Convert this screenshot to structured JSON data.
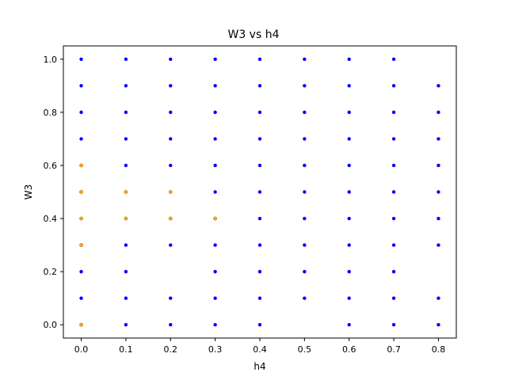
{
  "chart_data": {
    "type": "scatter",
    "title": "W3 vs h4",
    "xlabel": "h4",
    "ylabel": "W3",
    "xlim": [
      -0.04,
      0.84
    ],
    "ylim": [
      -0.05,
      1.05
    ],
    "xticks": [
      "0.0",
      "0.1",
      "0.2",
      "0.3",
      "0.4",
      "0.5",
      "0.6",
      "0.7",
      "0.8"
    ],
    "yticks": [
      "0.0",
      "0.2",
      "0.4",
      "0.6",
      "0.8",
      "1.0"
    ],
    "grid": false,
    "series": [
      {
        "color": "#0000ff",
        "points": [
          [
            0.0,
            1.0
          ],
          [
            0.0,
            0.9
          ],
          [
            0.0,
            0.8
          ],
          [
            0.0,
            0.7
          ],
          [
            0.0,
            0.2
          ],
          [
            0.0,
            0.1
          ],
          [
            0.1,
            1.0
          ],
          [
            0.1,
            0.9
          ],
          [
            0.1,
            0.8
          ],
          [
            0.1,
            0.7
          ],
          [
            0.1,
            0.6
          ],
          [
            0.1,
            0.3
          ],
          [
            0.1,
            0.2
          ],
          [
            0.1,
            0.1
          ],
          [
            0.1,
            0.0
          ],
          [
            0.2,
            1.0
          ],
          [
            0.2,
            0.9
          ],
          [
            0.2,
            0.8
          ],
          [
            0.2,
            0.7
          ],
          [
            0.2,
            0.6
          ],
          [
            0.2,
            0.3
          ],
          [
            0.2,
            0.1
          ],
          [
            0.2,
            0.0
          ],
          [
            0.3,
            1.0
          ],
          [
            0.3,
            0.9
          ],
          [
            0.3,
            0.8
          ],
          [
            0.3,
            0.7
          ],
          [
            0.3,
            0.6
          ],
          [
            0.3,
            0.5
          ],
          [
            0.3,
            0.3
          ],
          [
            0.3,
            0.2
          ],
          [
            0.3,
            0.1
          ],
          [
            0.3,
            0.0
          ],
          [
            0.4,
            1.0
          ],
          [
            0.4,
            0.9
          ],
          [
            0.4,
            0.8
          ],
          [
            0.4,
            0.7
          ],
          [
            0.4,
            0.6
          ],
          [
            0.4,
            0.5
          ],
          [
            0.4,
            0.4
          ],
          [
            0.4,
            0.3
          ],
          [
            0.4,
            0.2
          ],
          [
            0.4,
            0.1
          ],
          [
            0.4,
            0.0
          ],
          [
            0.5,
            1.0
          ],
          [
            0.5,
            0.9
          ],
          [
            0.5,
            0.8
          ],
          [
            0.5,
            0.7
          ],
          [
            0.5,
            0.6
          ],
          [
            0.5,
            0.5
          ],
          [
            0.5,
            0.4
          ],
          [
            0.5,
            0.3
          ],
          [
            0.5,
            0.2
          ],
          [
            0.5,
            0.1
          ],
          [
            0.6,
            1.0
          ],
          [
            0.6,
            0.9
          ],
          [
            0.6,
            0.8
          ],
          [
            0.6,
            0.7
          ],
          [
            0.6,
            0.6
          ],
          [
            0.6,
            0.5
          ],
          [
            0.6,
            0.4
          ],
          [
            0.6,
            0.3
          ],
          [
            0.6,
            0.2
          ],
          [
            0.6,
            0.1
          ],
          [
            0.6,
            0.0
          ],
          [
            0.7,
            1.0
          ],
          [
            0.7,
            0.9
          ],
          [
            0.7,
            0.8
          ],
          [
            0.7,
            0.7
          ],
          [
            0.7,
            0.6
          ],
          [
            0.7,
            0.5
          ],
          [
            0.7,
            0.4
          ],
          [
            0.7,
            0.3
          ],
          [
            0.7,
            0.2
          ],
          [
            0.7,
            0.1
          ],
          [
            0.7,
            0.0
          ],
          [
            0.8,
            0.9
          ],
          [
            0.8,
            0.8
          ],
          [
            0.8,
            0.7
          ],
          [
            0.8,
            0.6
          ],
          [
            0.8,
            0.5
          ],
          [
            0.8,
            0.4
          ],
          [
            0.8,
            0.3
          ],
          [
            0.8,
            0.1
          ],
          [
            0.8,
            0.0
          ]
        ]
      },
      {
        "color": "#f5a623",
        "points": [
          [
            0.0,
            0.6
          ],
          [
            0.0,
            0.5
          ],
          [
            0.0,
            0.4
          ],
          [
            0.0,
            0.3
          ],
          [
            0.0,
            0.0
          ],
          [
            0.1,
            0.5
          ],
          [
            0.1,
            0.4
          ],
          [
            0.2,
            0.5
          ],
          [
            0.2,
            0.4
          ],
          [
            0.3,
            0.4
          ]
        ]
      }
    ]
  }
}
